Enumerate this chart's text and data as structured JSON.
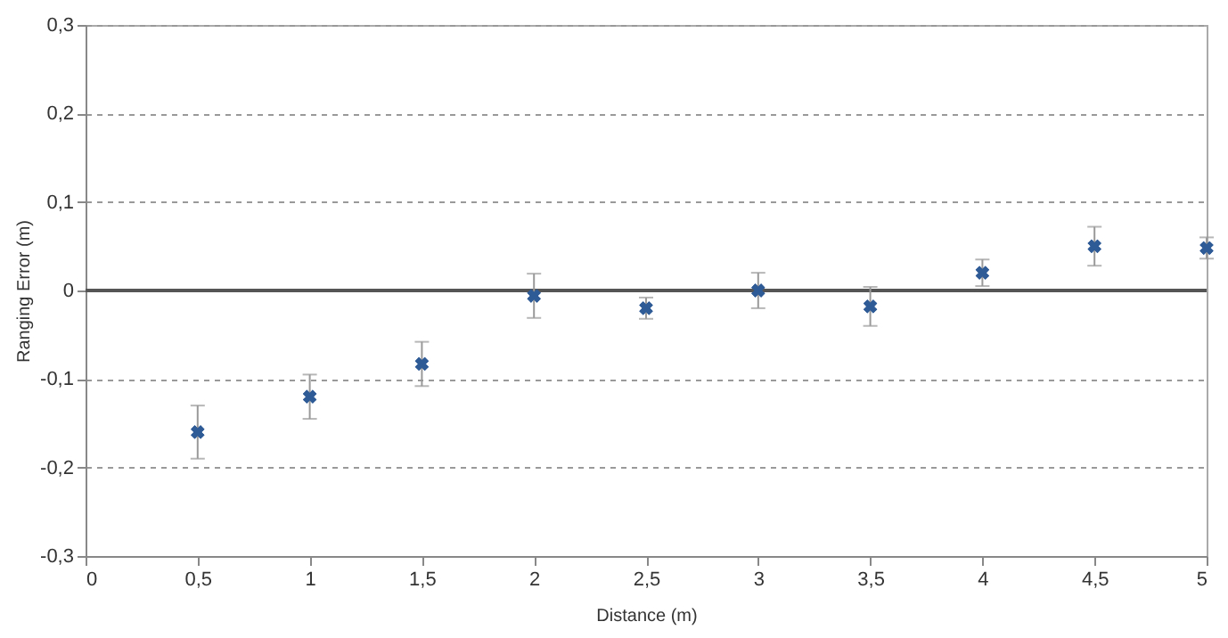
{
  "chart_data": {
    "type": "scatter",
    "xlabel": "Distance (m)",
    "ylabel": "Ranging Error (m)",
    "x": [
      0.5,
      1,
      1.5,
      2,
      2.5,
      3,
      3.5,
      4,
      4.5,
      5
    ],
    "series": [
      {
        "color": "#2e5a96",
        "values": [
          -0.16,
          -0.12,
          -0.083,
          -0.006,
          -0.02,
          0.0,
          -0.018,
          0.02,
          0.05,
          0.048
        ],
        "errors": [
          0.03,
          0.025,
          0.025,
          0.025,
          0.012,
          0.02,
          0.022,
          0.015,
          0.022,
          0.012
        ]
      }
    ],
    "marker": "cross",
    "xlim": [
      0,
      5
    ],
    "ylim": [
      -0.3,
      0.3
    ],
    "xticks": [
      0,
      {
        "value": 0.5,
        "label": "0,5"
      },
      1,
      {
        "value": 1.5,
        "label": "1,5"
      },
      2,
      {
        "value": 2.5,
        "label": "2,5"
      },
      3,
      {
        "value": 3.5,
        "label": "3,5"
      },
      4,
      {
        "value": 4.5,
        "label": "4,5"
      },
      5
    ],
    "yticks": [
      {
        "value": -0.3,
        "label": "-0,3"
      },
      {
        "value": -0.2,
        "label": "-0,2"
      },
      {
        "value": -0.1,
        "label": "-0,1"
      },
      0,
      {
        "value": 0.1,
        "label": "0,1"
      },
      {
        "value": 0.2,
        "label": "0,2"
      },
      {
        "value": 0.3,
        "label": "0,3"
      }
    ],
    "grid": "y",
    "ref_lines": [
      {
        "axis": "y",
        "value": 0,
        "color": "#555555",
        "line_style": "solid"
      }
    ]
  }
}
